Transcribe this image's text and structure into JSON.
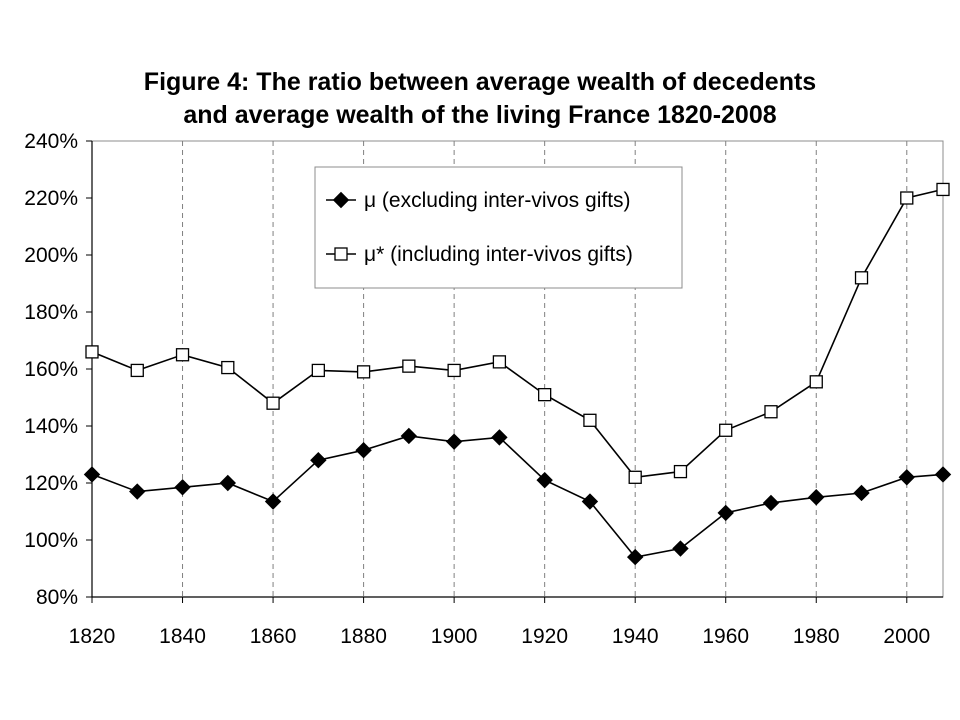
{
  "chart_data": {
    "type": "line",
    "title": "Figure 4: The ratio between average wealth of decedents and average wealth of the living France 1820-2008",
    "title_lines": [
      "Figure 4: The ratio between average wealth of decedents",
      "and average wealth of the living France 1820-2008"
    ],
    "xlabel": "",
    "ylabel": "",
    "xlim": [
      1820,
      2008
    ],
    "ylim": [
      80,
      240
    ],
    "x_ticks": [
      1820,
      1840,
      1860,
      1880,
      1900,
      1920,
      1940,
      1960,
      1980,
      2000
    ],
    "x_tick_labels": [
      "1820",
      "1840",
      "1860",
      "1880",
      "1900",
      "1920",
      "1940",
      "1960",
      "1980",
      "2000"
    ],
    "y_ticks": [
      80,
      100,
      120,
      140,
      160,
      180,
      200,
      220,
      240
    ],
    "y_tick_labels": [
      "80%",
      "100%",
      "120%",
      "140%",
      "160%",
      "180%",
      "200%",
      "220%",
      "240%"
    ],
    "grid": {
      "vertical": "dashed",
      "horizontal": false
    },
    "legend_position": "top-center",
    "x": [
      1820,
      1830,
      1840,
      1850,
      1860,
      1870,
      1880,
      1890,
      1900,
      1910,
      1920,
      1930,
      1940,
      1950,
      1960,
      1970,
      1980,
      1990,
      2000,
      2008
    ],
    "series": [
      {
        "name": "μ (excluding inter-vivos gifts)",
        "marker": "filled-diamond",
        "color": "#000000",
        "values": [
          123,
          117,
          118.5,
          120,
          113.5,
          128,
          131.5,
          136.5,
          134.5,
          136,
          121,
          113.5,
          94,
          97,
          109.5,
          113,
          115,
          116.5,
          122,
          123
        ]
      },
      {
        "name": "μ* (including inter-vivos gifts)",
        "marker": "open-square",
        "color": "#000000",
        "values": [
          166,
          159.5,
          165,
          160.5,
          148,
          159.5,
          159,
          161,
          159.5,
          162.5,
          151,
          142,
          122,
          124,
          138.5,
          145,
          155.5,
          192,
          220,
          223
        ]
      }
    ]
  }
}
